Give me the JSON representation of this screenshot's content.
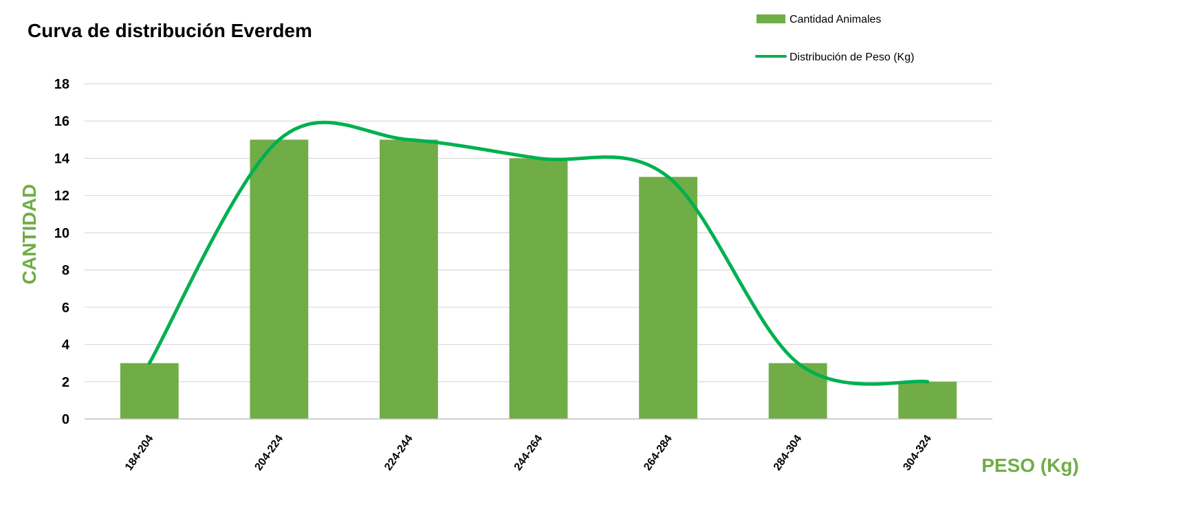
{
  "chart_data": {
    "type": "bar",
    "title": "Curva de distribución Everdem",
    "categories": [
      "184-204",
      "204-224",
      "224-244",
      "244-264",
      "264-284",
      "284-304",
      "304-324"
    ],
    "series": [
      {
        "name": "Cantidad Animales",
        "type": "bar",
        "values": [
          3,
          15,
          15,
          14,
          13,
          3,
          2
        ],
        "color": "#70ad47"
      },
      {
        "name": "Distribución de Peso (Kg)",
        "type": "line",
        "smooth": true,
        "values": [
          3,
          15,
          15,
          14,
          13,
          3,
          2
        ],
        "color": "#00b050"
      }
    ],
    "xlabel": "PESO (Kg)",
    "ylabel": "CANTIDAD",
    "ylim": [
      0,
      18
    ],
    "yticks": [
      0,
      2,
      4,
      6,
      8,
      10,
      12,
      14,
      16,
      18
    ],
    "grid": true,
    "legend": "top-right",
    "axis_title_color": "#70ad47",
    "gridline_color": "#d9d9d9"
  }
}
